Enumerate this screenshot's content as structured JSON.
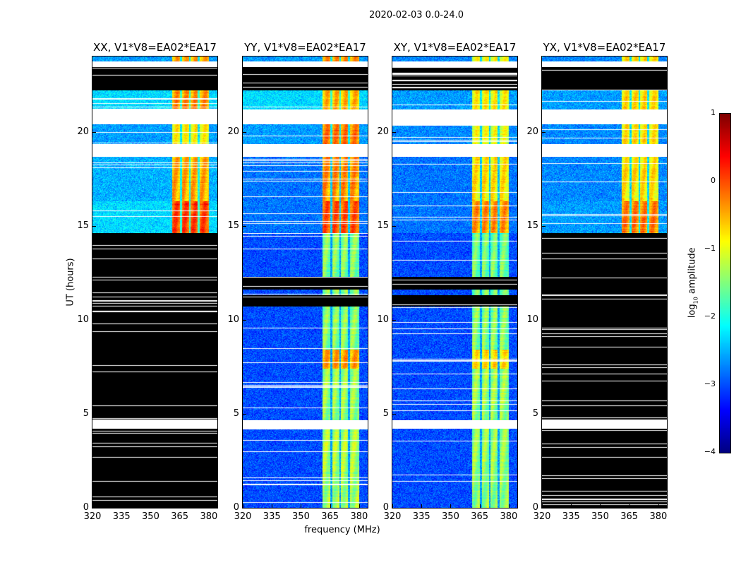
{
  "chart_data": {
    "type": "heatmap",
    "title": "2020-02-03 0.0-24.0",
    "xlabel": "frequency (MHz)",
    "ylabel": "UT (hours)",
    "xlim": [
      320,
      384.4
    ],
    "ylim": [
      0,
      24
    ],
    "xticks": [
      "320",
      "335",
      "350",
      "365",
      "380"
    ],
    "xtick_values": [
      320,
      335,
      350,
      365,
      380
    ],
    "yticks": [
      "0",
      "5",
      "10",
      "15",
      "20"
    ],
    "ytick_values": [
      0,
      5,
      10,
      15,
      20
    ],
    "colorbar": {
      "label_prefix": "log",
      "label_sub": "10",
      "label_suffix": " amplitude",
      "range": [
        -4,
        1
      ],
      "ticks": [
        "1",
        "0",
        "−1",
        "−2",
        "−3",
        "−4"
      ],
      "tick_values": [
        1,
        0,
        -1,
        -2,
        -3,
        -4
      ],
      "colormap": "jet"
    },
    "band_mhz": [
      361,
      380
    ],
    "band_gaps_mhz": [
      365.5,
      370,
      374.6
    ],
    "panels": [
      {
        "title": "XX, V1*V8=EA02*EA17",
        "segments": [
          {
            "t0": 23.73,
            "t1": 24,
            "state": "data",
            "bg": -2.6,
            "band": -0.5
          },
          {
            "t0": 23.43,
            "t1": 23.73,
            "state": "nodata"
          },
          {
            "t0": 22.2,
            "t1": 23.43,
            "state": "flagged"
          },
          {
            "t0": 21.2,
            "t1": 22.2,
            "state": "data",
            "bg": -2.3,
            "band": -0.4
          },
          {
            "t0": 20.4,
            "t1": 21.2,
            "state": "nodata"
          },
          {
            "t0": 19.35,
            "t1": 20.4,
            "state": "data",
            "bg": -2.6,
            "band": -0.9
          },
          {
            "t0": 18.67,
            "t1": 19.35,
            "state": "nodata"
          },
          {
            "t0": 16.3,
            "t1": 18.67,
            "state": "data",
            "bg": -2.5,
            "band": -0.5
          },
          {
            "t0": 14.6,
            "t1": 16.3,
            "state": "data",
            "bg": -2.3,
            "band": 0.0
          },
          {
            "t0": 4.66,
            "t1": 14.6,
            "state": "flagged"
          },
          {
            "t0": 4.2,
            "t1": 4.66,
            "state": "nodata"
          },
          {
            "t0": 0,
            "t1": 4.2,
            "state": "flagged"
          }
        ]
      },
      {
        "title": "YY, V1*V8=EA02*EA17",
        "segments": [
          {
            "t0": 23.73,
            "t1": 24,
            "state": "data",
            "bg": -2.6,
            "band": -0.4
          },
          {
            "t0": 23.43,
            "t1": 23.73,
            "state": "nodata"
          },
          {
            "t0": 22.2,
            "t1": 23.43,
            "state": "flagged"
          },
          {
            "t0": 21.2,
            "t1": 22.2,
            "state": "data",
            "bg": -2.3,
            "band": -0.6
          },
          {
            "t0": 20.4,
            "t1": 21.2,
            "state": "nodata"
          },
          {
            "t0": 19.35,
            "t1": 20.4,
            "state": "data",
            "bg": -2.6,
            "band": -0.3
          },
          {
            "t0": 18.67,
            "t1": 19.35,
            "state": "nodata"
          },
          {
            "t0": 16.3,
            "t1": 18.67,
            "state": "data",
            "bg": -2.8,
            "band": -0.4
          },
          {
            "t0": 14.6,
            "t1": 16.3,
            "state": "data",
            "bg": -2.8,
            "band": -0.1
          },
          {
            "t0": 12.3,
            "t1": 14.6,
            "state": "data",
            "bg": -3.0,
            "band": -1.5
          },
          {
            "t0": 11.6,
            "t1": 12.3,
            "state": "flagged"
          },
          {
            "t0": 11.3,
            "t1": 11.6,
            "state": "data",
            "bg": -3.0,
            "band": -1.5
          },
          {
            "t0": 10.7,
            "t1": 11.3,
            "state": "flagged"
          },
          {
            "t0": 8.4,
            "t1": 10.7,
            "state": "data",
            "bg": -3.0,
            "band": -1.5
          },
          {
            "t0": 7.4,
            "t1": 8.4,
            "state": "data",
            "bg": -3.0,
            "band": -0.5
          },
          {
            "t0": 4.66,
            "t1": 7.4,
            "state": "data",
            "bg": -3.0,
            "band": -1.4
          },
          {
            "t0": 4.2,
            "t1": 4.66,
            "state": "nodata"
          },
          {
            "t0": 0,
            "t1": 4.2,
            "state": "data",
            "bg": -3.0,
            "band": -1.3
          }
        ]
      },
      {
        "title": "XY, V1*V8=EA02*EA17",
        "segments": [
          {
            "t0": 23.73,
            "t1": 24,
            "state": "data",
            "bg": -2.7,
            "band": -1.0
          },
          {
            "t0": 23.43,
            "t1": 23.73,
            "state": "nodata"
          },
          {
            "t0": 22.2,
            "t1": 23.43,
            "state": "flagged"
          },
          {
            "t0": 21.2,
            "t1": 22.2,
            "state": "data",
            "bg": -2.6,
            "band": -0.9
          },
          {
            "t0": 20.4,
            "t1": 21.2,
            "state": "nodata"
          },
          {
            "t0": 19.35,
            "t1": 20.4,
            "state": "data",
            "bg": -2.7,
            "band": -1.0
          },
          {
            "t0": 18.67,
            "t1": 19.35,
            "state": "nodata"
          },
          {
            "t0": 16.3,
            "t1": 18.67,
            "state": "data",
            "bg": -2.8,
            "band": -0.8
          },
          {
            "t0": 14.6,
            "t1": 16.3,
            "state": "data",
            "bg": -2.8,
            "band": -0.4
          },
          {
            "t0": 12.3,
            "t1": 14.6,
            "state": "data",
            "bg": -3.0,
            "band": -1.6
          },
          {
            "t0": 11.6,
            "t1": 12.3,
            "state": "flagged"
          },
          {
            "t0": 11.3,
            "t1": 11.6,
            "state": "data",
            "bg": -3.0,
            "band": -1.6
          },
          {
            "t0": 10.7,
            "t1": 11.3,
            "state": "flagged"
          },
          {
            "t0": 8.4,
            "t1": 10.7,
            "state": "data",
            "bg": -3.0,
            "band": -1.5
          },
          {
            "t0": 7.4,
            "t1": 8.4,
            "state": "data",
            "bg": -3.0,
            "band": -0.8
          },
          {
            "t0": 4.66,
            "t1": 7.4,
            "state": "data",
            "bg": -3.0,
            "band": -1.4
          },
          {
            "t0": 4.2,
            "t1": 4.66,
            "state": "nodata"
          },
          {
            "t0": 0,
            "t1": 4.2,
            "state": "data",
            "bg": -3.0,
            "band": -1.4
          }
        ]
      },
      {
        "title": "YX, V1*V8=EA02*EA17",
        "segments": [
          {
            "t0": 23.73,
            "t1": 24,
            "state": "data",
            "bg": -2.7,
            "band": -0.8
          },
          {
            "t0": 23.43,
            "t1": 23.73,
            "state": "nodata"
          },
          {
            "t0": 22.2,
            "t1": 23.43,
            "state": "flagged"
          },
          {
            "t0": 21.2,
            "t1": 22.2,
            "state": "data",
            "bg": -2.6,
            "band": -0.8
          },
          {
            "t0": 20.4,
            "t1": 21.2,
            "state": "nodata"
          },
          {
            "t0": 19.35,
            "t1": 20.4,
            "state": "data",
            "bg": -2.7,
            "band": -0.8
          },
          {
            "t0": 18.67,
            "t1": 19.35,
            "state": "nodata"
          },
          {
            "t0": 16.3,
            "t1": 18.67,
            "state": "data",
            "bg": -2.7,
            "band": -0.8
          },
          {
            "t0": 14.6,
            "t1": 16.3,
            "state": "data",
            "bg": -2.6,
            "band": -0.3
          },
          {
            "t0": 4.66,
            "t1": 14.6,
            "state": "flagged"
          },
          {
            "t0": 4.2,
            "t1": 4.66,
            "state": "nodata"
          },
          {
            "t0": 0,
            "t1": 4.2,
            "state": "flagged"
          }
        ]
      }
    ]
  }
}
